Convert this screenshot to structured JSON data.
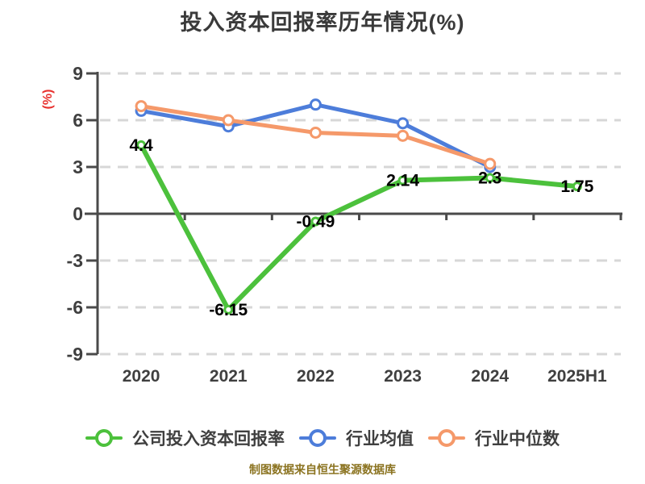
{
  "chart_data": {
    "type": "line",
    "title": "投入资本回报率历年情况(%)",
    "ylabel": "(%)",
    "categories": [
      "2020",
      "2021",
      "2022",
      "2023",
      "2024",
      "2025H1"
    ],
    "yticks": [
      9,
      6,
      3,
      0,
      -3,
      -6,
      -9
    ],
    "ylim": [
      -9,
      9
    ],
    "grid": true,
    "legend_position": "bottom",
    "series": [
      {
        "name": "公司投入资本回报率",
        "color": "#4cc13c",
        "values": [
          4.4,
          -6.15,
          -0.49,
          2.14,
          2.3,
          1.75
        ],
        "labels": [
          "4.4",
          "-6.15",
          "-0.49",
          "2.14",
          "2.3",
          "1.75"
        ]
      },
      {
        "name": "行业均值",
        "color": "#4d7dda",
        "values": [
          6.6,
          5.6,
          7.0,
          5.8,
          3.0,
          null
        ],
        "labels": null
      },
      {
        "name": "行业中位数",
        "color": "#f5996a",
        "values": [
          6.9,
          6.0,
          5.2,
          5.0,
          3.2,
          null
        ],
        "labels": null
      }
    ],
    "colors": {
      "grid": "#d7d7d7",
      "axis": "#4a4a4a",
      "tick_text": "#3f3f3f",
      "data_label": "#000000",
      "unit_label": "#e8312e",
      "footer_text": "#8b7320",
      "background": "#ffffff"
    }
  },
  "footer": {
    "text": "制图数据来自恒生聚源数据库"
  }
}
